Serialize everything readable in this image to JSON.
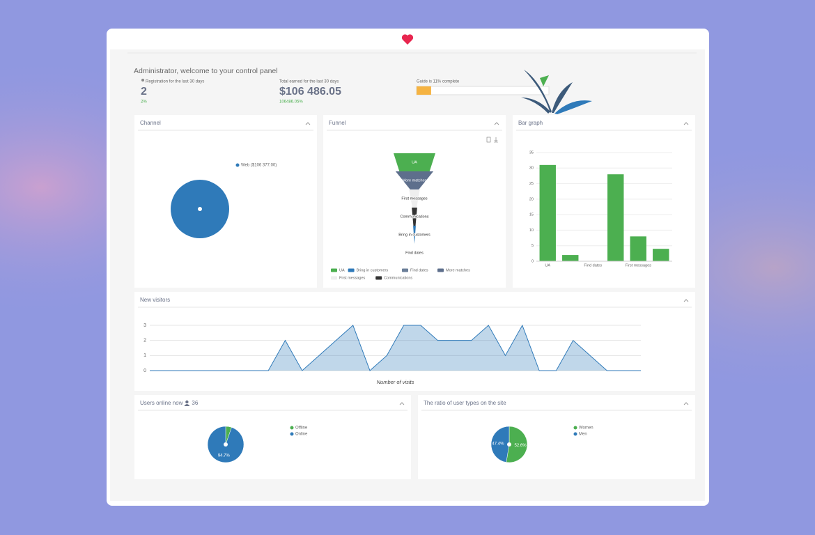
{
  "header": {
    "welcome": "Administrator, welcome to your control panel"
  },
  "stats": [
    {
      "label": "Registration for the last 30 days",
      "value": "2",
      "change": "2%"
    },
    {
      "label": "Total earned for the last 30 days",
      "value": "$106 486.05",
      "change": "106486.05%"
    }
  ],
  "guide": {
    "label": "Guide is 11% complete",
    "percent": 11
  },
  "chart_data": [
    {
      "type": "pie",
      "title": "Channel",
      "categories": [
        "Web ($106 377.00)"
      ],
      "values": [
        106377
      ],
      "colors": [
        "#2f7ab9"
      ]
    },
    {
      "type": "funnel",
      "title": "Funnel",
      "categories": [
        "UA",
        "Bring in customers",
        "Find dates",
        "More matches",
        "First messages",
        "Communications"
      ],
      "values": [
        31,
        2,
        0,
        28,
        8,
        4
      ],
      "colors": [
        "#4caf50",
        "#2f7ab9",
        "#6b7f99",
        "#5e6f8c",
        "#eeeeee",
        "#333333"
      ]
    },
    {
      "type": "bar",
      "title": "Bar graph",
      "categories": [
        "UA",
        null,
        "Find dates",
        null,
        "First messages",
        null
      ],
      "values": [
        31,
        2,
        0,
        28,
        8,
        4
      ],
      "color": "#4caf50",
      "ylim": [
        0,
        35
      ],
      "yticks": [
        0,
        5,
        10,
        15,
        20,
        25,
        30,
        35
      ],
      "grid": true
    },
    {
      "type": "area",
      "title": "New visitors",
      "x_label": "Number of visits",
      "categories": [
        null,
        null,
        null,
        null,
        null,
        null,
        null,
        null,
        null,
        null,
        null,
        null,
        null,
        null,
        null,
        null,
        null,
        null,
        null,
        null,
        null,
        null,
        null,
        null,
        null,
        null,
        null,
        null,
        null,
        null
      ],
      "values": [
        0,
        0,
        0,
        0,
        0,
        0,
        0,
        0,
        2,
        0,
        1,
        2,
        3,
        0,
        1,
        3,
        3,
        2,
        2,
        2,
        3,
        1,
        3,
        0,
        0,
        2,
        1,
        0,
        0,
        0
      ],
      "color": "#2f7ab9",
      "ylim": [
        0,
        3
      ],
      "yticks": [
        0,
        1,
        2,
        3
      ],
      "grid": true
    },
    {
      "type": "pie",
      "title": "Users online now",
      "online_count": 36,
      "categories": [
        "Offline",
        "Online"
      ],
      "values": [
        5.3,
        94.7
      ],
      "value_labels": [
        null,
        "94.7%"
      ],
      "colors": [
        "#4caf50",
        "#2f7ab9"
      ]
    },
    {
      "type": "pie",
      "title": "The ratio of user types on the site",
      "categories": [
        "Women",
        "Men"
      ],
      "values": [
        52.6,
        47.4
      ],
      "value_labels": [
        "52.6%",
        "47.4%"
      ],
      "colors": [
        "#4caf50",
        "#2f7ab9"
      ]
    }
  ]
}
